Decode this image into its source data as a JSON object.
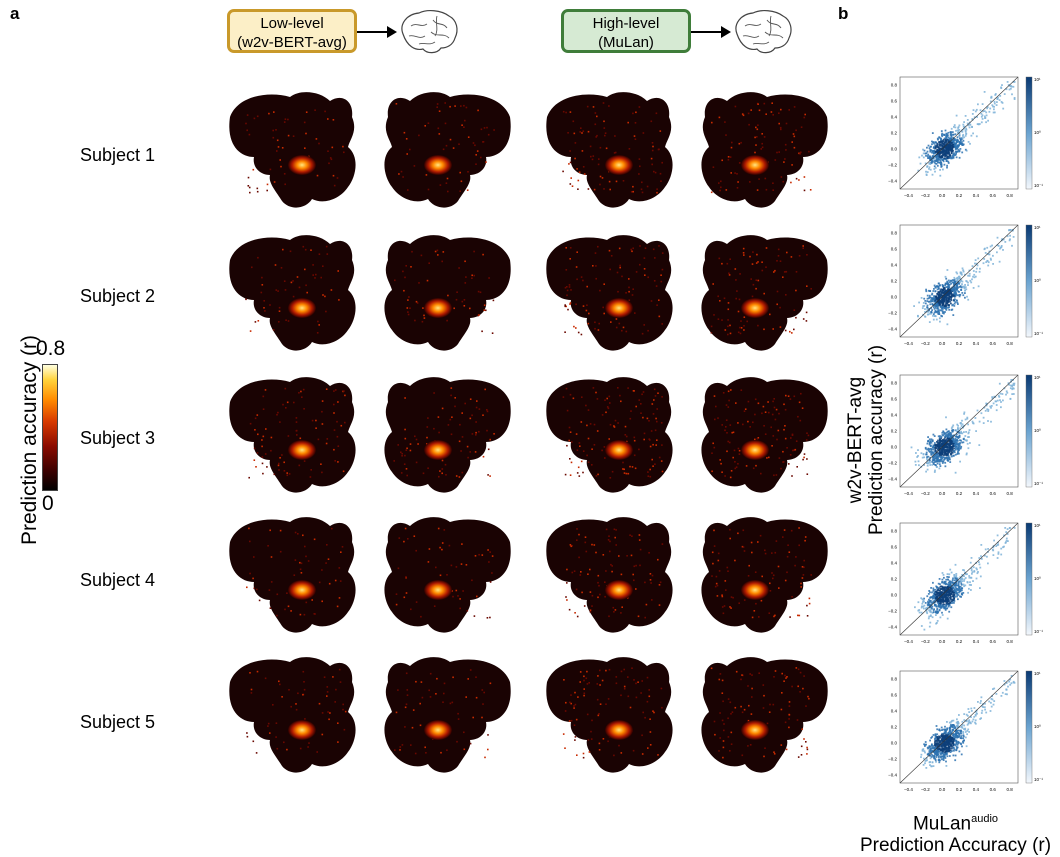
{
  "panel_a": {
    "letter": "a",
    "models": [
      {
        "line1": "Low-level",
        "line2": "(w2v-BERT-avg)",
        "border": "#c9992a",
        "fill": "#fcefc7"
      },
      {
        "line1": "High-level",
        "line2": "(MuLan)",
        "border": "#3f7d3a",
        "fill": "#d6ead3"
      }
    ],
    "subjects": [
      "Subject 1",
      "Subject 2",
      "Subject 3",
      "Subject 4",
      "Subject 5"
    ],
    "colorbar": {
      "label": "Prediction accuracy (r)",
      "max": "0.8",
      "min": "0",
      "colormap": "hot"
    }
  },
  "panel_b": {
    "letter": "b",
    "ylabel_line1": "w2v-BERT-avg",
    "ylabel_line2": "Prediction accuracy (r)",
    "xlabel_main": "MuLan",
    "xlabel_sup": "audio",
    "xlabel_line2": "Prediction Accuracy (r)",
    "x_ticks": [
      "−0.4",
      "−0.2",
      "0.0",
      "0.2",
      "0.4",
      "0.6",
      "0.8"
    ],
    "y_ticks": [
      "0.8",
      "0.6",
      "0.4",
      "0.2",
      "0.0",
      "−0.2",
      "−0.4"
    ],
    "cbar_ticks": [
      "10¹",
      "10⁰",
      "10⁻¹"
    ],
    "plot_color": "#1f5f9e"
  }
}
